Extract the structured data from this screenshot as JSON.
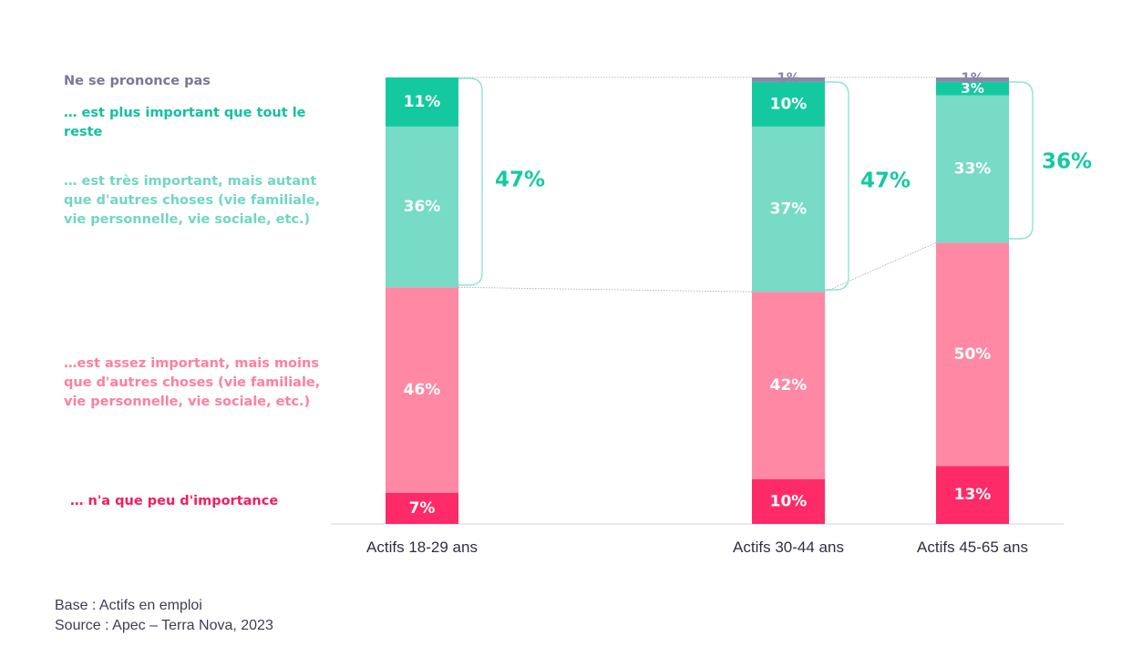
{
  "chart_data": {
    "type": "bar",
    "stacked": true,
    "categories": [
      "Actifs 18-29 ans",
      "Actifs 30-44 ans",
      "Actifs 45-65 ans"
    ],
    "series": [
      {
        "name": "… n'a que peu d'importance",
        "color": "#ff2a68",
        "values": [
          7,
          10,
          13
        ]
      },
      {
        "name": "…est assez important, mais moins que d'autres choses (vie familiale, vie personnelle, vie sociale, etc.)",
        "color": "#ff88a4",
        "values": [
          46,
          42,
          50
        ]
      },
      {
        "name": "… est très important, mais autant que d'autres choses (vie familiale, vie personnelle, vie sociale, etc.)",
        "color": "#77dbc6",
        "values": [
          36,
          37,
          33
        ]
      },
      {
        "name": "… est plus important que tout le reste",
        "color": "#14c9a0",
        "values": [
          11,
          10,
          3
        ]
      },
      {
        "name": "Ne se prononce pas",
        "color": "#8a87a8",
        "values": [
          0,
          1,
          1
        ]
      }
    ],
    "bracket_totals": [
      "47%",
      "47%",
      "36%"
    ],
    "value_suffix": "%",
    "ylim": [
      0,
      100
    ],
    "legend_position": "left"
  },
  "legend_items": [
    {
      "text": "Ne se prononce pas",
      "color": "#787896"
    },
    {
      "text": "… est plus important que tout le reste",
      "color": "#12c19c"
    },
    {
      "text": "… est très important, mais autant que d'autres choses (vie familiale, vie personnelle, vie sociale, etc.)",
      "color": "#6fd7c2"
    },
    {
      "text": "…est assez important, mais moins que d'autres choses (vie familiale, vie personnelle, vie sociale, etc.)",
      "color": "#ff7f9d"
    },
    {
      "text": "… n'a que peu d'importance",
      "color": "#f51d5e"
    }
  ],
  "footer": {
    "base": "Base : Actifs en emploi",
    "source": "Source : Apec – Terra Nova, 2023"
  }
}
